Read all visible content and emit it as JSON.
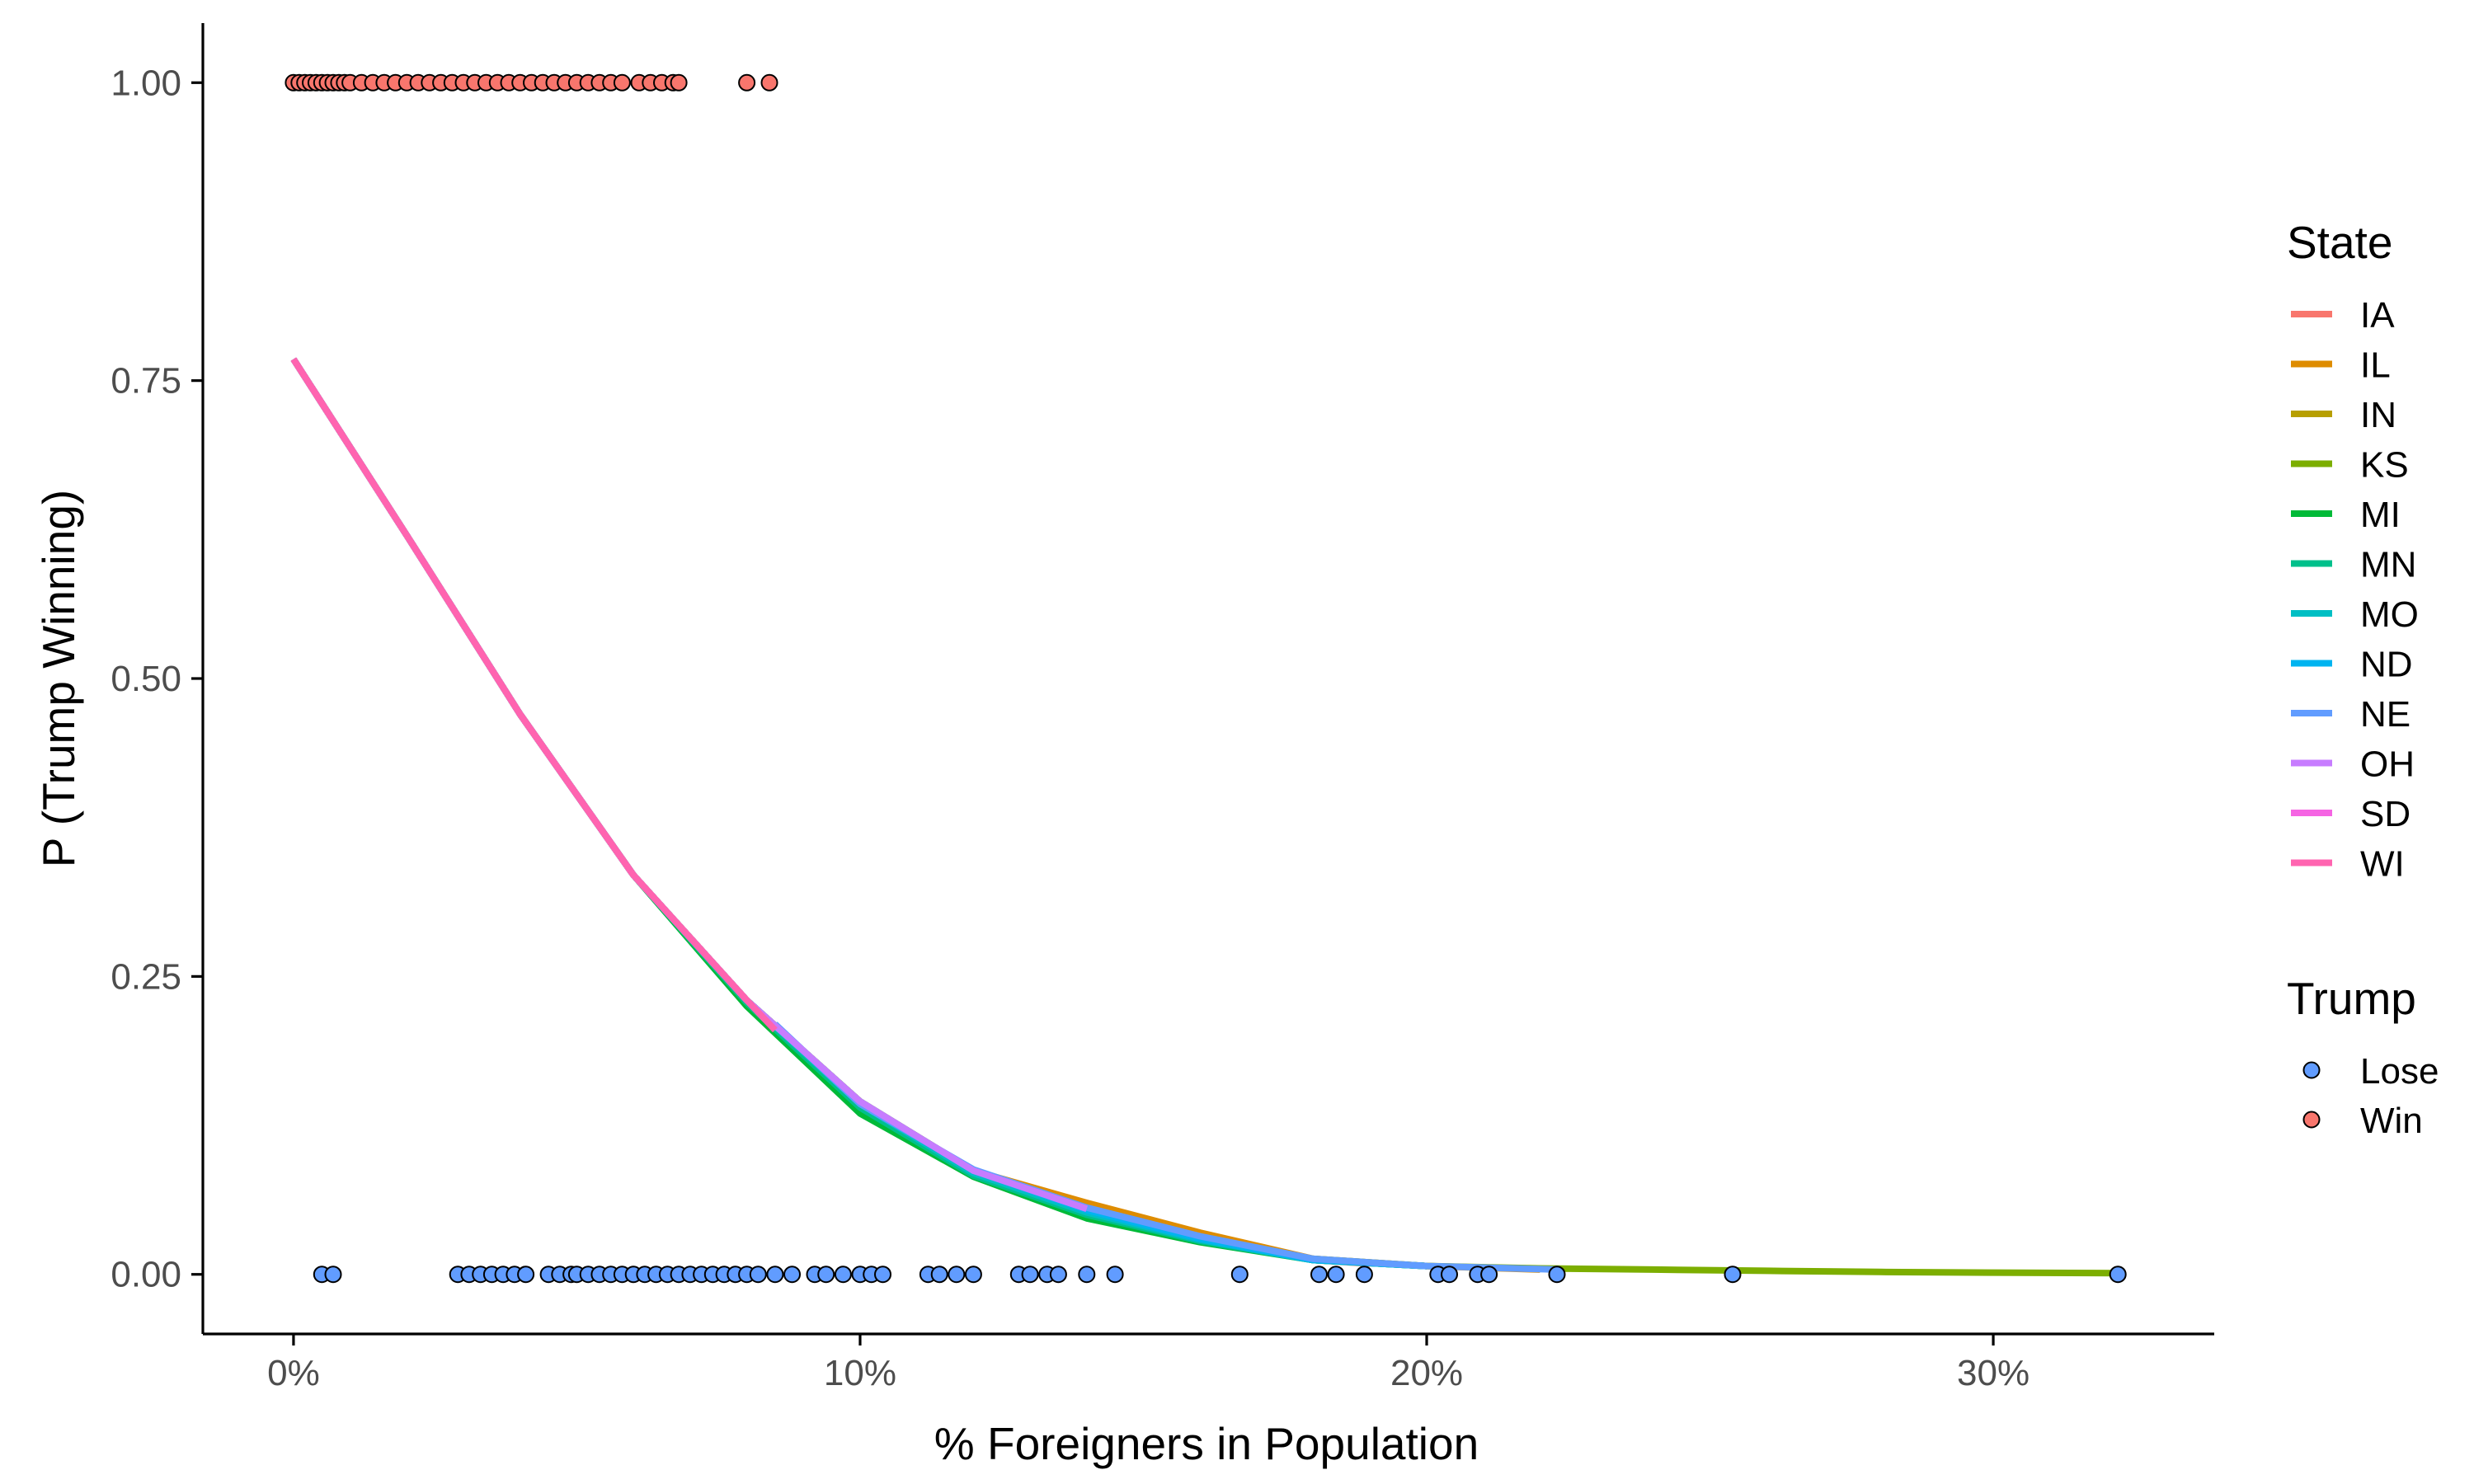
{
  "chart_data": {
    "type": "scatter",
    "xlabel": "% Foreigners in Population",
    "ylabel": "P (Trump Winning)",
    "xlim": [
      -1.6,
      33.9
    ],
    "ylim": [
      -0.05,
      1.05
    ],
    "x_ticks": [
      0,
      10,
      20,
      30
    ],
    "x_tick_labels": [
      "0%",
      "10%",
      "20%",
      "30%"
    ],
    "y_ticks": [
      0,
      0.25,
      0.5,
      0.75,
      1.0
    ],
    "y_tick_labels": [
      "0.00",
      "0.25",
      "0.50",
      "0.75",
      "1.00"
    ],
    "grid": false,
    "legend_position": "right",
    "point_legend": {
      "title": "Trump",
      "entries": [
        {
          "label": "Lose",
          "color": "#619CFF"
        },
        {
          "label": "Win",
          "color": "#F8766D"
        }
      ]
    },
    "points": [
      {
        "group": "Win",
        "y": 1,
        "x": [
          0,
          0.1,
          0.2,
          0.3,
          0.4,
          0.5,
          0.6,
          0.7,
          0.8,
          0.9,
          1.0,
          1.2,
          1.4,
          1.6,
          1.8,
          2.0,
          2.2,
          2.4,
          2.6,
          2.8,
          3.0,
          3.2,
          3.4,
          3.6,
          3.8,
          4.0,
          4.2,
          4.4,
          4.6,
          4.8,
          5.0,
          5.2,
          5.4,
          5.6,
          5.8,
          6.1,
          6.3,
          6.5,
          6.7,
          6.8,
          8.0,
          8.4
        ]
      },
      {
        "group": "Lose",
        "y": 0,
        "x": [
          0.5,
          0.7,
          2.9,
          3.1,
          3.3,
          3.5,
          3.7,
          3.9,
          4.1,
          4.5,
          4.7,
          4.9,
          5.0,
          5.2,
          5.4,
          5.6,
          5.8,
          6.0,
          6.2,
          6.4,
          6.6,
          6.8,
          7.0,
          7.2,
          7.4,
          7.6,
          7.8,
          8.0,
          8.2,
          8.5,
          8.8,
          9.2,
          9.4,
          9.7,
          10.0,
          10.2,
          10.4,
          11.2,
          11.4,
          11.7,
          12.0,
          12.8,
          13.0,
          13.3,
          13.5,
          14.0,
          14.5,
          16.7,
          18.1,
          18.4,
          18.9,
          20.2,
          20.4,
          20.9,
          21.1,
          22.3,
          25.4,
          32.2
        ]
      }
    ],
    "series_legend_title": "State",
    "series": [
      {
        "name": "IA",
        "color": "#F8766D",
        "x": [
          0,
          2,
          4,
          6,
          8,
          10,
          12,
          14,
          16,
          18,
          19
        ],
        "y": [
          0.768,
          0.62,
          0.47,
          0.335,
          0.23,
          0.145,
          0.087,
          0.055,
          0.03,
          0.012,
          0.009
        ]
      },
      {
        "name": "IL",
        "color": "#DE8C00",
        "x": [
          0,
          2,
          4,
          6,
          8,
          10,
          12,
          14,
          16,
          18,
          20,
          22
        ],
        "y": [
          0.768,
          0.62,
          0.47,
          0.335,
          0.23,
          0.145,
          0.087,
          0.06,
          0.035,
          0.013,
          0.007,
          0.004
        ]
      },
      {
        "name": "IN",
        "color": "#B79F00",
        "x": [
          0,
          2,
          4,
          6,
          8,
          10,
          12,
          14,
          16,
          18,
          20
        ],
        "y": [
          0.768,
          0.62,
          0.47,
          0.335,
          0.23,
          0.145,
          0.087,
          0.055,
          0.03,
          0.012,
          0.007
        ]
      },
      {
        "name": "KS",
        "color": "#7CAE00",
        "x": [
          0,
          2,
          4,
          6,
          8,
          10,
          12,
          14,
          16,
          18,
          20,
          22,
          24,
          26,
          28,
          30,
          32.2
        ],
        "y": [
          0.768,
          0.62,
          0.47,
          0.335,
          0.23,
          0.145,
          0.085,
          0.05,
          0.028,
          0.013,
          0.007,
          0.005,
          0.004,
          0.003,
          0.002,
          0.0015,
          0.001
        ]
      },
      {
        "name": "MI",
        "color": "#00BA38",
        "x": [
          0,
          2,
          4,
          6,
          8,
          10,
          12,
          14,
          16,
          18,
          20
        ],
        "y": [
          0.768,
          0.62,
          0.47,
          0.335,
          0.225,
          0.135,
          0.082,
          0.047,
          0.027,
          0.012,
          0.007
        ]
      },
      {
        "name": "MN",
        "color": "#00C08B",
        "x": [
          0,
          2,
          4,
          6,
          8,
          10,
          12,
          14,
          16,
          18,
          20
        ],
        "y": [
          0.768,
          0.62,
          0.47,
          0.335,
          0.228,
          0.14,
          0.083,
          0.05,
          0.028,
          0.012,
          0.007
        ]
      },
      {
        "name": "MO",
        "color": "#00BFC4",
        "x": [
          0,
          2,
          4,
          6,
          8,
          10,
          12,
          14,
          16,
          18,
          20
        ],
        "y": [
          0.768,
          0.62,
          0.47,
          0.335,
          0.23,
          0.143,
          0.085,
          0.052,
          0.029,
          0.012,
          0.007
        ]
      },
      {
        "name": "ND",
        "color": "#00B4F0",
        "x": [
          0,
          2,
          4,
          6,
          8,
          10,
          12,
          14,
          16,
          18,
          20
        ],
        "y": [
          0.768,
          0.62,
          0.47,
          0.335,
          0.23,
          0.145,
          0.087,
          0.054,
          0.03,
          0.012,
          0.007
        ]
      },
      {
        "name": "NE",
        "color": "#619CFF",
        "x": [
          8.5,
          10,
          12,
          14,
          16,
          18,
          20,
          22.3
        ],
        "y": [
          0.21,
          0.143,
          0.088,
          0.056,
          0.032,
          0.013,
          0.007,
          0.004
        ]
      },
      {
        "name": "OH",
        "color": "#C77CFF",
        "x": [
          0,
          2,
          4,
          6,
          8,
          10,
          12,
          14
        ],
        "y": [
          0.768,
          0.62,
          0.47,
          0.335,
          0.23,
          0.145,
          0.087,
          0.055
        ]
      },
      {
        "name": "SD",
        "color": "#F564E3",
        "x": [
          0,
          2,
          4,
          6,
          8
        ],
        "y": [
          0.768,
          0.62,
          0.47,
          0.335,
          0.23
        ]
      },
      {
        "name": "WI",
        "color": "#FF64B0",
        "x": [
          0,
          2,
          4,
          6,
          8,
          8.5
        ],
        "y": [
          0.768,
          0.62,
          0.47,
          0.335,
          0.23,
          0.205
        ]
      }
    ]
  }
}
